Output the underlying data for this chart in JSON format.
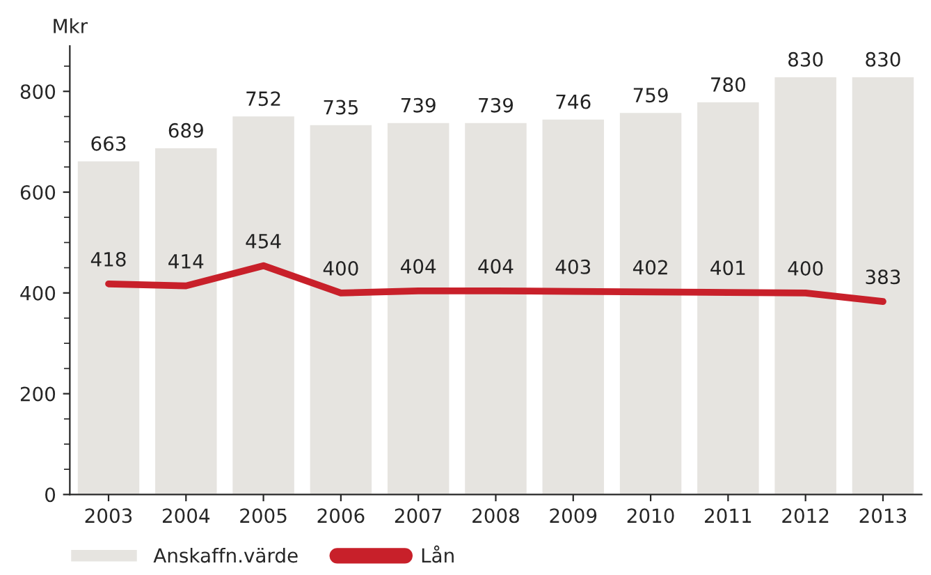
{
  "chart_data": {
    "type": "bar",
    "ylabel": "Mkr",
    "categories": [
      "2003",
      "2004",
      "2005",
      "2006",
      "2007",
      "2008",
      "2009",
      "2010",
      "2011",
      "2012",
      "2013"
    ],
    "series": [
      {
        "name": "Anskaffn.värde",
        "color": "#e6e4e0",
        "values": [
          663,
          689,
          752,
          735,
          739,
          739,
          746,
          759,
          780,
          830,
          830
        ]
      },
      {
        "name": "Lån",
        "type": "line",
        "color": "#c8202a",
        "values": [
          418,
          414,
          454,
          400,
          404,
          404,
          403,
          402,
          401,
          400,
          383
        ]
      }
    ],
    "ylim": [
      0,
      890
    ],
    "yticks": [
      0,
      200,
      400,
      600,
      800
    ],
    "data_labels": true,
    "legend": "bottom left",
    "grid": false
  }
}
